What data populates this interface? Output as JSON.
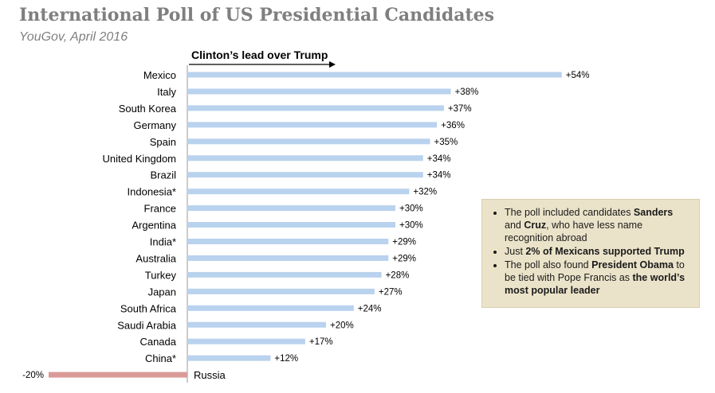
{
  "title": "International Poll of US Presidential Candidates",
  "subtitle": "YouGov, April 2016",
  "chart_data": {
    "type": "bar",
    "orientation": "horizontal",
    "title": "International Poll of US Presidential Candidates",
    "subtitle": "YouGov, April 2016",
    "axis_label": "Clinton’s lead over Trump",
    "categories": [
      "Mexico",
      "Italy",
      "South Korea",
      "Germany",
      "Spain",
      "United Kingdom",
      "Brazil",
      "Indonesia*",
      "France",
      "Argentina",
      "India*",
      "Australia",
      "Turkey",
      "Japan",
      "South Africa",
      "Saudi Arabia",
      "Canada",
      "China*",
      "Russia"
    ],
    "values": [
      54,
      38,
      37,
      36,
      35,
      34,
      34,
      32,
      30,
      30,
      29,
      29,
      28,
      27,
      24,
      20,
      17,
      12,
      -20
    ],
    "labels": [
      "+54%",
      "+38%",
      "+37%",
      "+36%",
      "+35%",
      "+34%",
      "+34%",
      "+32%",
      "+30%",
      "+30%",
      "+29%",
      "+29%",
      "+28%",
      "+27%",
      "+24%",
      "+20%",
      "+17%",
      "+12%",
      "-20%"
    ],
    "positive_color": "#b9d2ee",
    "negative_color": "#d99a98",
    "unit": "%"
  },
  "note": {
    "b1_pre": "The poll included candidates ",
    "b1_sanders": "Sanders",
    "b1_and": " and ",
    "b1_cruz": "Cruz",
    "b1_post": ", who have less name recognition abroad",
    "b2_pre": "Just ",
    "b2_bold": "2% of Mexicans supported Trump",
    "b3_pre": "The poll also found ",
    "b3_obama": "President Obama",
    "b3_mid": " to be tied with Pope Francis as ",
    "b3_bold": "the world’s most popular leader"
  }
}
